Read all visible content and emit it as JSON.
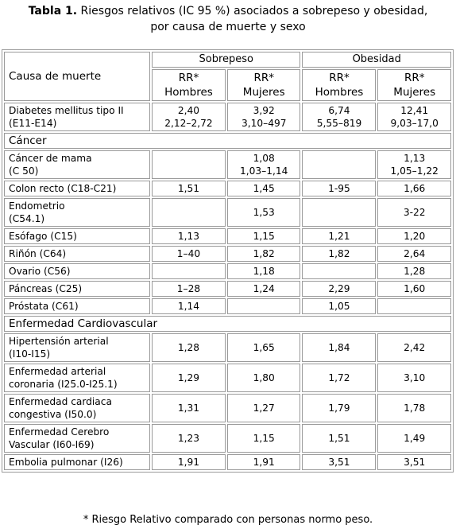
{
  "caption": {
    "label": "Tabla 1.",
    "line1": "Riesgos relativos (IC 95 %) asociados a sobrepeso y obesidad,",
    "line2": "por causa de muerte y sexo"
  },
  "table": {
    "col_header": "Causa de muerte",
    "group1": "Sobrepeso",
    "group2": "Obesidad",
    "sub": [
      {
        "l1": "RR*",
        "l2": "Hombres"
      },
      {
        "l1": "RR*",
        "l2": "Mujeres"
      },
      {
        "l1": "RR*",
        "l2": "Hombres"
      },
      {
        "l1": "RR*",
        "l2": "Mujeres"
      }
    ],
    "rows": [
      {
        "cause": [
          "Diabetes mellitus tipo II",
          "(E11-E14)"
        ],
        "vals": [
          [
            "2,40",
            "2,12–2,72"
          ],
          [
            "3,92",
            "3,10–497"
          ],
          [
            "6,74",
            "5,55–819"
          ],
          [
            "12,41",
            "9,03–17,0"
          ]
        ]
      },
      {
        "section": "Cáncer"
      },
      {
        "cause": [
          "Cáncer de mama",
          "(C 50)"
        ],
        "vals": [
          [],
          [
            "1,08",
            "1,03–1,14"
          ],
          [],
          [
            "1,13",
            "1,05–1,22"
          ]
        ]
      },
      {
        "cause": [
          "Colon recto (C18-C21)"
        ],
        "vals": [
          [
            "1,51"
          ],
          [
            "1,45"
          ],
          [
            "1-95"
          ],
          [
            "1,66"
          ]
        ]
      },
      {
        "cause": [
          "Endometrio",
          "(C54.1)"
        ],
        "vals": [
          [],
          [
            "1,53"
          ],
          [],
          [
            "3-22"
          ]
        ]
      },
      {
        "cause": [
          "Esófago (C15)"
        ],
        "vals": [
          [
            "1,13"
          ],
          [
            "1,15"
          ],
          [
            "1,21"
          ],
          [
            "1,20"
          ]
        ]
      },
      {
        "cause": [
          "Riñón (C64)"
        ],
        "vals": [
          [
            "1–40"
          ],
          [
            "1,82"
          ],
          [
            "1,82"
          ],
          [
            "2,64"
          ]
        ]
      },
      {
        "cause": [
          "Ovario (C56)"
        ],
        "vals": [
          [],
          [
            "1,18"
          ],
          [],
          [
            "1,28"
          ]
        ]
      },
      {
        "cause": [
          "Páncreas (C25)"
        ],
        "vals": [
          [
            "1–28"
          ],
          [
            "1,24"
          ],
          [
            "2,29"
          ],
          [
            "1,60"
          ]
        ]
      },
      {
        "cause": [
          "Próstata (C61)"
        ],
        "vals": [
          [
            "1,14"
          ],
          [],
          [
            "1,05"
          ],
          []
        ]
      },
      {
        "section": "Enfermedad Cardiovascular"
      },
      {
        "cause": [
          "Hipertensión arterial",
          "(I10-I15)"
        ],
        "vals": [
          [
            "1,28"
          ],
          [
            "1,65"
          ],
          [
            "1,84"
          ],
          [
            "2,42"
          ]
        ]
      },
      {
        "cause": [
          "Enfermedad arterial",
          "coronaria (I25.0-I25.1)"
        ],
        "vals": [
          [
            "1,29"
          ],
          [
            "1,80"
          ],
          [
            "1,72"
          ],
          [
            "3,10"
          ]
        ]
      },
      {
        "cause": [
          "Enfermedad cardiaca",
          "congestiva (I50.0)"
        ],
        "vals": [
          [
            "1,31"
          ],
          [
            "1,27"
          ],
          [
            "1,79"
          ],
          [
            "1,78"
          ]
        ]
      },
      {
        "cause": [
          "Enfermedad Cerebro",
          "Vascular (I60-I69)"
        ],
        "vals": [
          [
            "1,23"
          ],
          [
            "1,15"
          ],
          [
            "1,51"
          ],
          [
            "1,49"
          ]
        ]
      },
      {
        "cause": [
          "Embolia pulmonar (I26)"
        ],
        "vals": [
          [
            "1,91"
          ],
          [
            "1,91"
          ],
          [
            "3,51"
          ],
          [
            "3,51"
          ]
        ]
      }
    ]
  },
  "footnote": "* Riesgo Relativo comparado con personas normo peso."
}
